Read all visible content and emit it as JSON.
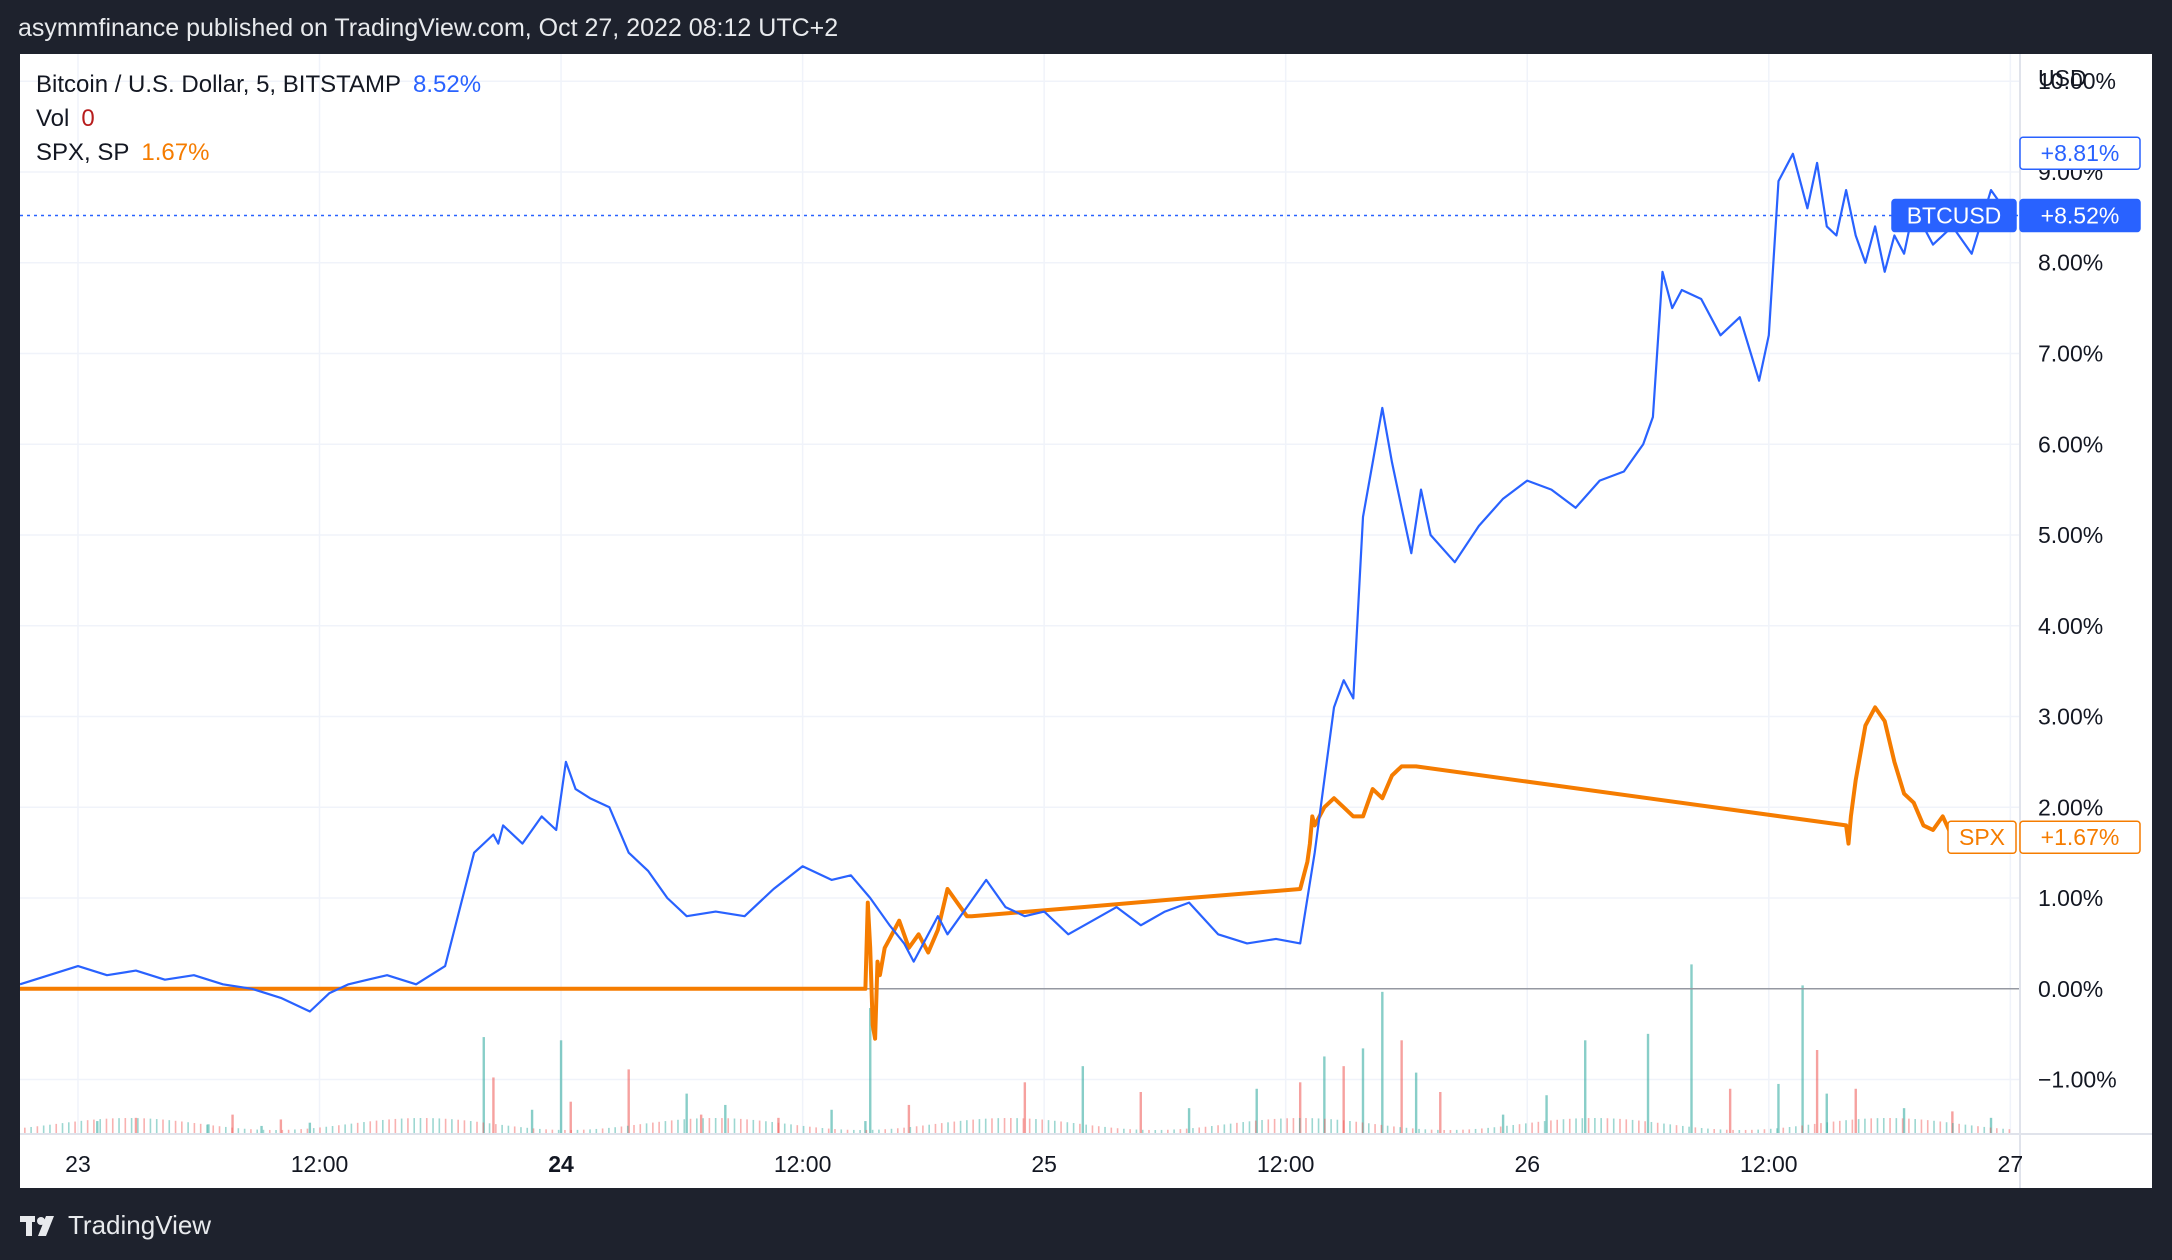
{
  "header": {
    "attribution": "asymmfinance published on TradingView.com, Oct 27, 2022 08:12 UTC+2"
  },
  "footer": {
    "brand": "TradingView"
  },
  "legend": {
    "main_label": "Bitcoin / U.S. Dollar, 5, BITSTAMP",
    "main_value": "8.52%",
    "vol_label": "Vol",
    "vol_value": "0",
    "spx_label": "SPX, SP",
    "spx_value": "1.67%"
  },
  "colors": {
    "btc": "#2962ff",
    "spx": "#f57c00",
    "vol_up": "#26a69a",
    "vol_down": "#ef5350"
  },
  "chart_data": {
    "type": "line",
    "ylabel_unit": "USD",
    "y_tick_labels": [
      "10.00%",
      "9.00%",
      "8.00%",
      "7.00%",
      "6.00%",
      "5.00%",
      "4.00%",
      "3.00%",
      "2.00%",
      "1.00%",
      "0.00%",
      "−1.00%"
    ],
    "ylim": [
      -1.6,
      10.3
    ],
    "x_tick_labels": [
      "23",
      "12:00",
      "24",
      "12:00",
      "25",
      "12:00",
      "26",
      "12:00",
      "27"
    ],
    "x_tick_bold": [
      false,
      false,
      true,
      false,
      false,
      false,
      false,
      false,
      false
    ],
    "x_tick_positions_days": [
      0,
      0.5,
      1,
      1.5,
      2,
      2.5,
      3,
      3.5,
      4
    ],
    "xlim_days": [
      -0.12,
      4.02
    ],
    "price_labels": [
      {
        "text": "+8.81%",
        "value": 8.81,
        "style": "btc-outline"
      },
      {
        "text": "BTCUSD",
        "value": 8.52,
        "style": "btc-tag"
      },
      {
        "text": "+8.52%",
        "value": 8.52,
        "style": "btc-fill"
      },
      {
        "text": "SPX",
        "value": 1.67,
        "style": "spx-tag"
      },
      {
        "text": "+1.67%",
        "value": 1.67,
        "style": "spx-outline"
      }
    ],
    "series": [
      {
        "name": "Bitcoin / U.S. Dollar, 5, BITSTAMP",
        "x": [
          -0.12,
          -0.06,
          0.0,
          0.06,
          0.12,
          0.18,
          0.24,
          0.3,
          0.36,
          0.42,
          0.48,
          0.52,
          0.56,
          0.6,
          0.64,
          0.7,
          0.76,
          0.82,
          0.86,
          0.87,
          0.88,
          0.92,
          0.96,
          0.99,
          1.01,
          1.03,
          1.06,
          1.1,
          1.14,
          1.18,
          1.22,
          1.26,
          1.32,
          1.38,
          1.44,
          1.5,
          1.56,
          1.6,
          1.64,
          1.68,
          1.71,
          1.73,
          1.75,
          1.78,
          1.8,
          1.84,
          1.88,
          1.92,
          1.96,
          2.0,
          2.05,
          2.1,
          2.15,
          2.2,
          2.25,
          2.3,
          2.36,
          2.42,
          2.48,
          2.53,
          2.56,
          2.58,
          2.6,
          2.62,
          2.64,
          2.66,
          2.68,
          2.7,
          2.72,
          2.74,
          2.76,
          2.78,
          2.8,
          2.85,
          2.9,
          2.95,
          3.0,
          3.05,
          3.1,
          3.15,
          3.2,
          3.24,
          3.26,
          3.28,
          3.3,
          3.32,
          3.36,
          3.4,
          3.44,
          3.48,
          3.5,
          3.52,
          3.55,
          3.58,
          3.6,
          3.62,
          3.64,
          3.66,
          3.68,
          3.7,
          3.72,
          3.74,
          3.76,
          3.78,
          3.8,
          3.84,
          3.88,
          3.92,
          3.96,
          4.0
        ],
        "values": [
          0.05,
          0.15,
          0.25,
          0.15,
          0.2,
          0.1,
          0.15,
          0.05,
          0.0,
          -0.1,
          -0.25,
          -0.05,
          0.05,
          0.1,
          0.15,
          0.05,
          0.25,
          1.5,
          1.7,
          1.6,
          1.8,
          1.6,
          1.9,
          1.75,
          2.5,
          2.2,
          2.1,
          2.0,
          1.5,
          1.3,
          1.0,
          0.8,
          0.85,
          0.8,
          1.1,
          1.35,
          1.2,
          1.25,
          1.0,
          0.7,
          0.5,
          0.3,
          0.5,
          0.8,
          0.6,
          0.9,
          1.2,
          0.9,
          0.8,
          0.85,
          0.6,
          0.75,
          0.9,
          0.7,
          0.85,
          0.95,
          0.6,
          0.5,
          0.55,
          0.5,
          1.5,
          2.3,
          3.1,
          3.4,
          3.2,
          5.2,
          5.8,
          6.4,
          5.8,
          5.3,
          4.8,
          5.5,
          5.0,
          4.7,
          5.1,
          5.4,
          5.6,
          5.5,
          5.3,
          5.6,
          5.7,
          6.0,
          6.3,
          7.9,
          7.5,
          7.7,
          7.6,
          7.2,
          7.4,
          6.7,
          7.2,
          8.9,
          9.2,
          8.6,
          9.1,
          8.4,
          8.3,
          8.8,
          8.3,
          8.0,
          8.4,
          7.9,
          8.3,
          8.1,
          8.6,
          8.2,
          8.4,
          8.1,
          8.8,
          8.5
        ]
      },
      {
        "name": "SPX, SP",
        "x": [
          -0.12,
          0.0,
          0.5,
          1.0,
          1.5,
          1.63,
          1.635,
          1.64,
          1.645,
          1.65,
          1.655,
          1.66,
          1.67,
          1.68,
          1.69,
          1.7,
          1.72,
          1.74,
          1.76,
          1.78,
          1.8,
          1.82,
          1.84,
          1.85,
          2.08,
          2.3,
          2.53,
          2.545,
          2.55,
          2.555,
          2.56,
          2.58,
          2.6,
          2.62,
          2.64,
          2.66,
          2.68,
          2.7,
          2.72,
          2.74,
          2.76,
          2.77,
          3.66,
          3.665,
          3.67,
          3.68,
          3.7,
          3.72,
          3.74,
          3.76,
          3.78,
          3.8,
          3.82,
          3.84,
          3.86,
          3.88
        ],
        "values": [
          0.0,
          0.0,
          0.0,
          0.0,
          0.0,
          0.0,
          0.95,
          0.45,
          -0.4,
          -0.55,
          0.3,
          0.15,
          0.45,
          0.55,
          0.65,
          0.75,
          0.45,
          0.6,
          0.4,
          0.65,
          1.1,
          0.95,
          0.8,
          0.8,
          0.9,
          1.0,
          1.1,
          1.4,
          1.6,
          1.9,
          1.8,
          2.0,
          2.1,
          2.0,
          1.9,
          1.9,
          2.2,
          2.1,
          2.35,
          2.45,
          2.45,
          2.45,
          1.8,
          1.6,
          1.9,
          2.3,
          2.9,
          3.1,
          2.95,
          2.5,
          2.15,
          2.05,
          1.8,
          1.75,
          1.9,
          1.67
        ]
      }
    ],
    "volume": {
      "x": [
        0.04,
        0.12,
        0.27,
        0.32,
        0.38,
        0.42,
        0.48,
        0.84,
        0.86,
        0.94,
        1.0,
        1.02,
        1.14,
        1.26,
        1.29,
        1.34,
        1.45,
        1.56,
        1.63,
        1.64,
        1.72,
        1.96,
        2.08,
        2.2,
        2.3,
        2.44,
        2.53,
        2.58,
        2.62,
        2.66,
        2.7,
        2.74,
        2.77,
        2.82,
        2.95,
        3.04,
        3.12,
        3.25,
        3.34,
        3.42,
        3.52,
        3.57,
        3.6,
        3.62,
        3.68,
        3.78,
        3.88,
        3.96
      ],
      "values": [
        8,
        10,
        6,
        12,
        5,
        9,
        7,
        60,
        35,
        15,
        58,
        20,
        40,
        25,
        12,
        18,
        10,
        15,
        8,
        78,
        18,
        32,
        42,
        26,
        16,
        28,
        32,
        48,
        42,
        53,
        88,
        58,
        38,
        26,
        12,
        24,
        58,
        62,
        105,
        28,
        31,
        92,
        52,
        25,
        28,
        16,
        14,
        10
      ],
      "direction": [
        "up",
        "down",
        "up",
        "down",
        "up",
        "down",
        "up",
        "up",
        "down",
        "up",
        "up",
        "down",
        "down",
        "up",
        "down",
        "up",
        "down",
        "up",
        "up",
        "up",
        "down",
        "down",
        "up",
        "down",
        "up",
        "up",
        "down",
        "up",
        "down",
        "up",
        "up",
        "down",
        "up",
        "down",
        "up",
        "up",
        "up",
        "up",
        "up",
        "down",
        "up",
        "up",
        "down",
        "up",
        "down",
        "up",
        "down",
        "up"
      ],
      "ylim": [
        0,
        130
      ]
    }
  }
}
